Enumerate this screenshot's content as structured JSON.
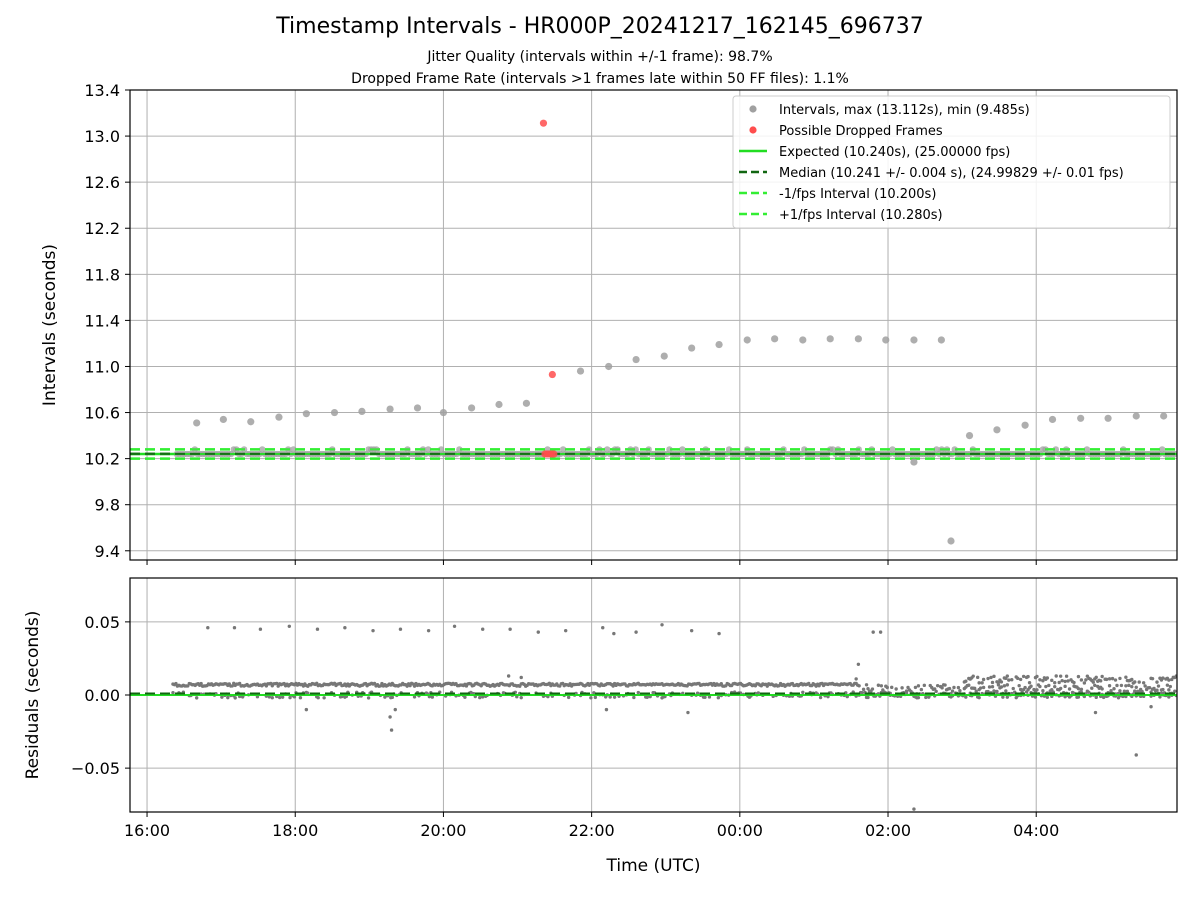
{
  "figure": {
    "title": "Timestamp Intervals - HR000P_20241217_162145_696737",
    "subtitle_jitter": "Jitter Quality (intervals within +/-1 frame): 98.7%",
    "subtitle_dropped": "Dropped Frame Rate (intervals >1 frames late within 50 FF files): 1.1%"
  },
  "colors": {
    "intervals": "#a0a0a0",
    "dropped": "#ff4d4d",
    "expected": "#22dd22",
    "median": "#116611",
    "fps_bounds": "#33ee33",
    "residuals": "#777777",
    "grid": "#b0b0b0"
  },
  "chart_data": [
    {
      "type": "scatter",
      "panel": "top",
      "xlabel": "",
      "ylabel": "Intervals (seconds)",
      "x_unit": "hours since 00:00 UTC on 2024-12-17 (values > 24 are after midnight)",
      "xlim": [
        15.77,
        29.9
      ],
      "ylim": [
        9.32,
        13.4
      ],
      "yticks": [
        9.4,
        9.8,
        10.2,
        10.6,
        11.0,
        11.4,
        11.8,
        12.2,
        12.6,
        13.0,
        13.4
      ],
      "ytick_labels": [
        "9.4",
        "9.8",
        "10.2",
        "10.6",
        "11.0",
        "11.4",
        "11.8",
        "12.2",
        "12.6",
        "13.0",
        "13.4"
      ],
      "xticks": [
        16,
        18,
        20,
        22,
        24,
        26,
        28
      ],
      "grid": true,
      "legend_position": "top-right",
      "legend": [
        "Intervals, max (13.112s), min (9.485s)",
        "Possible Dropped Frames",
        "Expected (10.240s), (25.00000 fps)",
        "Median (10.241 +/- 0.004 s), (24.99829 +/- 0.01 fps)",
        "-1/fps Interval (10.200s)",
        "+1/fps Interval (10.280s)"
      ],
      "lines": [
        {
          "name": "Expected",
          "y": 10.24,
          "style": "solid"
        },
        {
          "name": "Median",
          "y": 10.241,
          "style": "dashed"
        },
        {
          "name": "-1/fps Interval",
          "y": 10.2,
          "style": "dashed"
        },
        {
          "name": "+1/fps Interval",
          "y": 10.28,
          "style": "dashed"
        }
      ],
      "series": [
        {
          "name": "Intervals",
          "x": [
            16.67,
            17.03,
            17.4,
            17.78,
            18.15,
            18.53,
            18.9,
            19.28,
            19.65,
            20.0,
            20.38,
            20.75,
            21.12,
            21.85,
            22.23,
            22.6,
            22.98,
            23.35,
            23.72,
            24.1,
            24.47,
            24.85,
            25.22,
            25.6,
            25.97,
            26.35,
            26.72,
            26.85,
            27.1,
            27.47,
            27.85,
            28.22,
            28.6,
            28.97,
            29.35,
            29.72
          ],
          "y": [
            10.51,
            10.54,
            10.52,
            10.56,
            10.59,
            10.6,
            10.61,
            10.63,
            10.64,
            10.6,
            10.64,
            10.67,
            10.68,
            10.96,
            11.0,
            11.06,
            11.09,
            11.16,
            11.19,
            11.23,
            11.24,
            11.23,
            11.24,
            11.24,
            11.23,
            11.23,
            11.23,
            9.485,
            10.4,
            10.45,
            10.49,
            10.54,
            10.55,
            10.55,
            10.57,
            10.57
          ]
        },
        {
          "name": "Intervals (baseline band)",
          "x": [
            16.4,
            17.9,
            19.4,
            20.9,
            22.4,
            23.9,
            25.4,
            26.9,
            28.4,
            29.85
          ],
          "y": [
            10.24,
            10.24,
            10.24,
            10.24,
            10.24,
            10.24,
            10.24,
            10.24,
            10.24,
            10.24
          ]
        },
        {
          "name": "Intervals (low)",
          "x": [
            26.35
          ],
          "y": [
            10.17
          ]
        },
        {
          "name": "Possible Dropped Frames",
          "x": [
            21.35,
            21.47,
            21.37,
            21.4,
            21.43,
            21.46,
            21.49
          ],
          "y": [
            13.112,
            10.93,
            10.24,
            10.24,
            10.24,
            10.24,
            10.24
          ]
        }
      ]
    },
    {
      "type": "scatter",
      "panel": "bottom",
      "xlabel": "Time (UTC)",
      "ylabel": "Residuals (seconds)",
      "xlim": [
        15.77,
        29.9
      ],
      "ylim": [
        -0.08,
        0.08
      ],
      "yticks": [
        -0.05,
        0.0,
        0.05
      ],
      "ytick_labels": [
        "−0.05",
        "0.00",
        "0.05"
      ],
      "xticks": [
        16,
        18,
        20,
        22,
        24,
        26,
        28
      ],
      "xtick_labels": [
        "16:00",
        "18:00",
        "20:00",
        "22:00",
        "00:00",
        "02:00",
        "04:00"
      ],
      "grid": true,
      "lines": [
        {
          "name": "Expected",
          "y": 0.0,
          "style": "solid"
        },
        {
          "name": "Median",
          "y": 0.001,
          "style": "dashed"
        }
      ],
      "series": [
        {
          "name": "Residuals (upper band)",
          "x_range": [
            16.35,
            29.9
          ],
          "y": 0.007
        },
        {
          "name": "Residuals (lower band)",
          "x_range": [
            16.35,
            29.9
          ],
          "y": 0.0
        },
        {
          "name": "Residuals (outliers)",
          "x": [
            16.82,
            17.18,
            17.53,
            17.92,
            18.3,
            18.67,
            19.05,
            19.42,
            19.8,
            20.15,
            20.53,
            20.9,
            21.28,
            21.65,
            22.15,
            22.3,
            22.6,
            22.95,
            23.35,
            23.72,
            25.8,
            25.9,
            26.35,
            29.35,
            19.3,
            19.28,
            19.35,
            20.88,
            21.05,
            18.15,
            25.6,
            25.57,
            28.8,
            29.55,
            23.3,
            22.2
          ],
          "y": [
            0.046,
            0.046,
            0.045,
            0.047,
            0.045,
            0.046,
            0.044,
            0.045,
            0.044,
            0.047,
            0.045,
            0.045,
            0.043,
            0.044,
            0.046,
            0.042,
            0.043,
            0.048,
            0.044,
            0.042,
            0.043,
            0.043,
            -0.078,
            -0.041,
            -0.024,
            -0.015,
            -0.01,
            0.013,
            0.012,
            -0.01,
            0.021,
            0.011,
            -0.012,
            -0.008,
            -0.012,
            -0.01
          ]
        }
      ]
    }
  ]
}
